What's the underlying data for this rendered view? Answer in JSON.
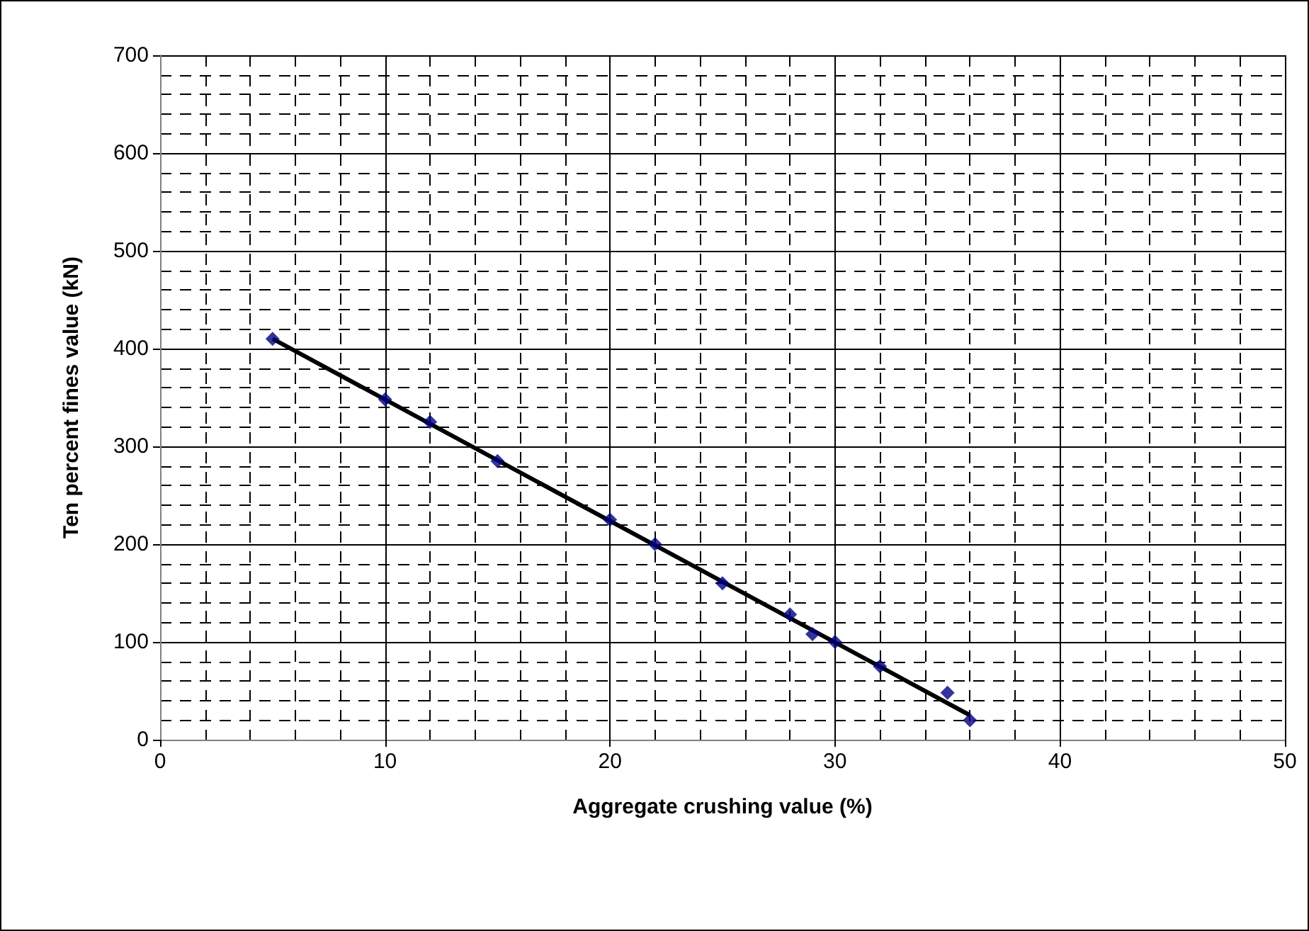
{
  "chart_data": {
    "type": "scatter",
    "xlabel": "Aggregate crushing value (%)",
    "ylabel": "Ten percent fines value (kN)",
    "xlim": [
      0,
      50
    ],
    "xticks": [
      0,
      10,
      20,
      30,
      40,
      50
    ],
    "ylim": [
      0,
      700
    ],
    "yticks": [
      0,
      100,
      200,
      300,
      400,
      500,
      600,
      700
    ],
    "grid": true,
    "series": [
      {
        "color": "#000080",
        "marker": "diamond",
        "x": [
          5,
          10,
          12,
          15,
          20,
          22,
          25,
          28,
          29,
          30,
          32,
          35,
          36
        ],
        "values": [
          410,
          348,
          325,
          285,
          225,
          200,
          160,
          128,
          108,
          100,
          75,
          48,
          20
        ]
      },
      {
        "type": "line",
        "color": "#000000",
        "marker": "none",
        "x": [
          5,
          36
        ],
        "values": [
          410,
          25
        ]
      }
    ]
  }
}
